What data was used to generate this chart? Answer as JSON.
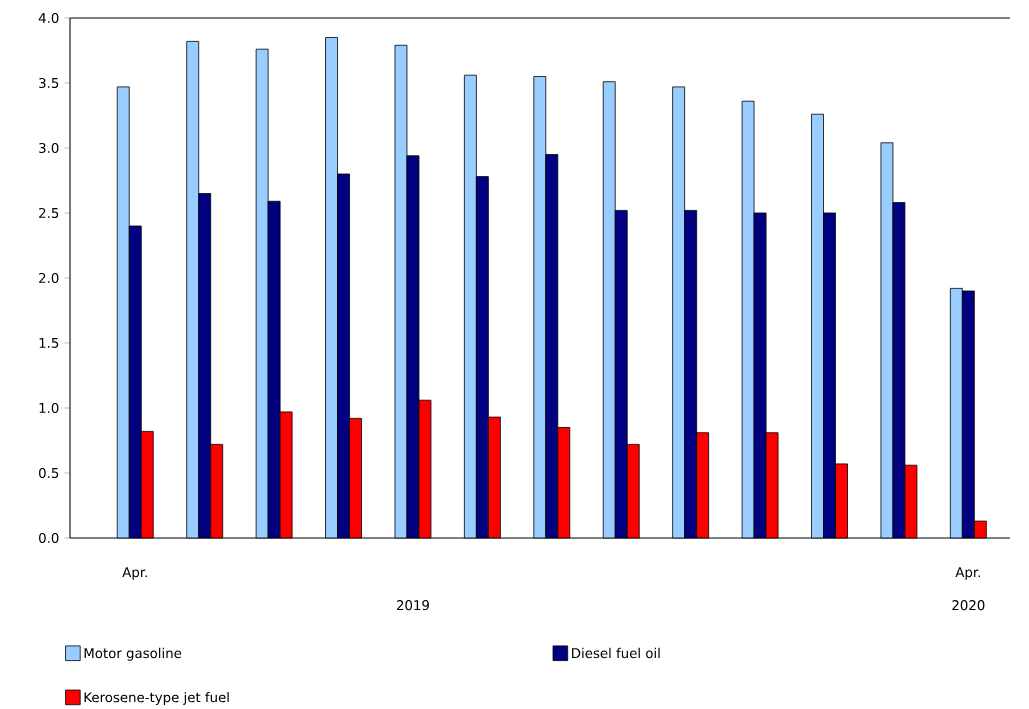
{
  "chart_data": {
    "type": "bar",
    "categories": [
      "Apr.",
      null,
      null,
      null,
      null,
      null,
      null,
      null,
      null,
      null,
      null,
      null,
      "Apr."
    ],
    "series": [
      {
        "name": "Motor gasoline",
        "color": "#99ccff",
        "values": [
          3.47,
          3.82,
          3.76,
          3.85,
          3.79,
          3.56,
          3.55,
          3.51,
          3.47,
          3.36,
          3.26,
          3.04,
          1.92
        ]
      },
      {
        "name": "Diesel fuel oil",
        "color": "#000080",
        "values": [
          2.4,
          2.65,
          2.59,
          2.8,
          2.94,
          2.78,
          2.95,
          2.52,
          2.52,
          2.5,
          2.5,
          2.58,
          1.9
        ]
      },
      {
        "name": "Kerosene-type jet fuel",
        "color": "#ff0000",
        "values": [
          0.82,
          0.72,
          0.97,
          0.92,
          1.06,
          0.93,
          0.85,
          0.72,
          0.81,
          0.81,
          0.57,
          0.56,
          0.13
        ]
      }
    ],
    "ylim": [
      0,
      4
    ],
    "yticks": [
      {
        "value": 0,
        "label": "0.0"
      },
      {
        "value": 0.5,
        "label": "0.5"
      },
      {
        "value": 1,
        "label": "1.0"
      },
      {
        "value": 1.5,
        "label": "1.5"
      },
      {
        "value": 2,
        "label": "2.0"
      },
      {
        "value": 2.5,
        "label": "2.5"
      },
      {
        "value": 3,
        "label": "3.0"
      },
      {
        "value": 3.5,
        "label": "3.5"
      },
      {
        "value": 4,
        "label": "4.0"
      }
    ],
    "annotations": [
      "2019",
      "2020"
    ],
    "legend": "bottom",
    "grid": false
  }
}
